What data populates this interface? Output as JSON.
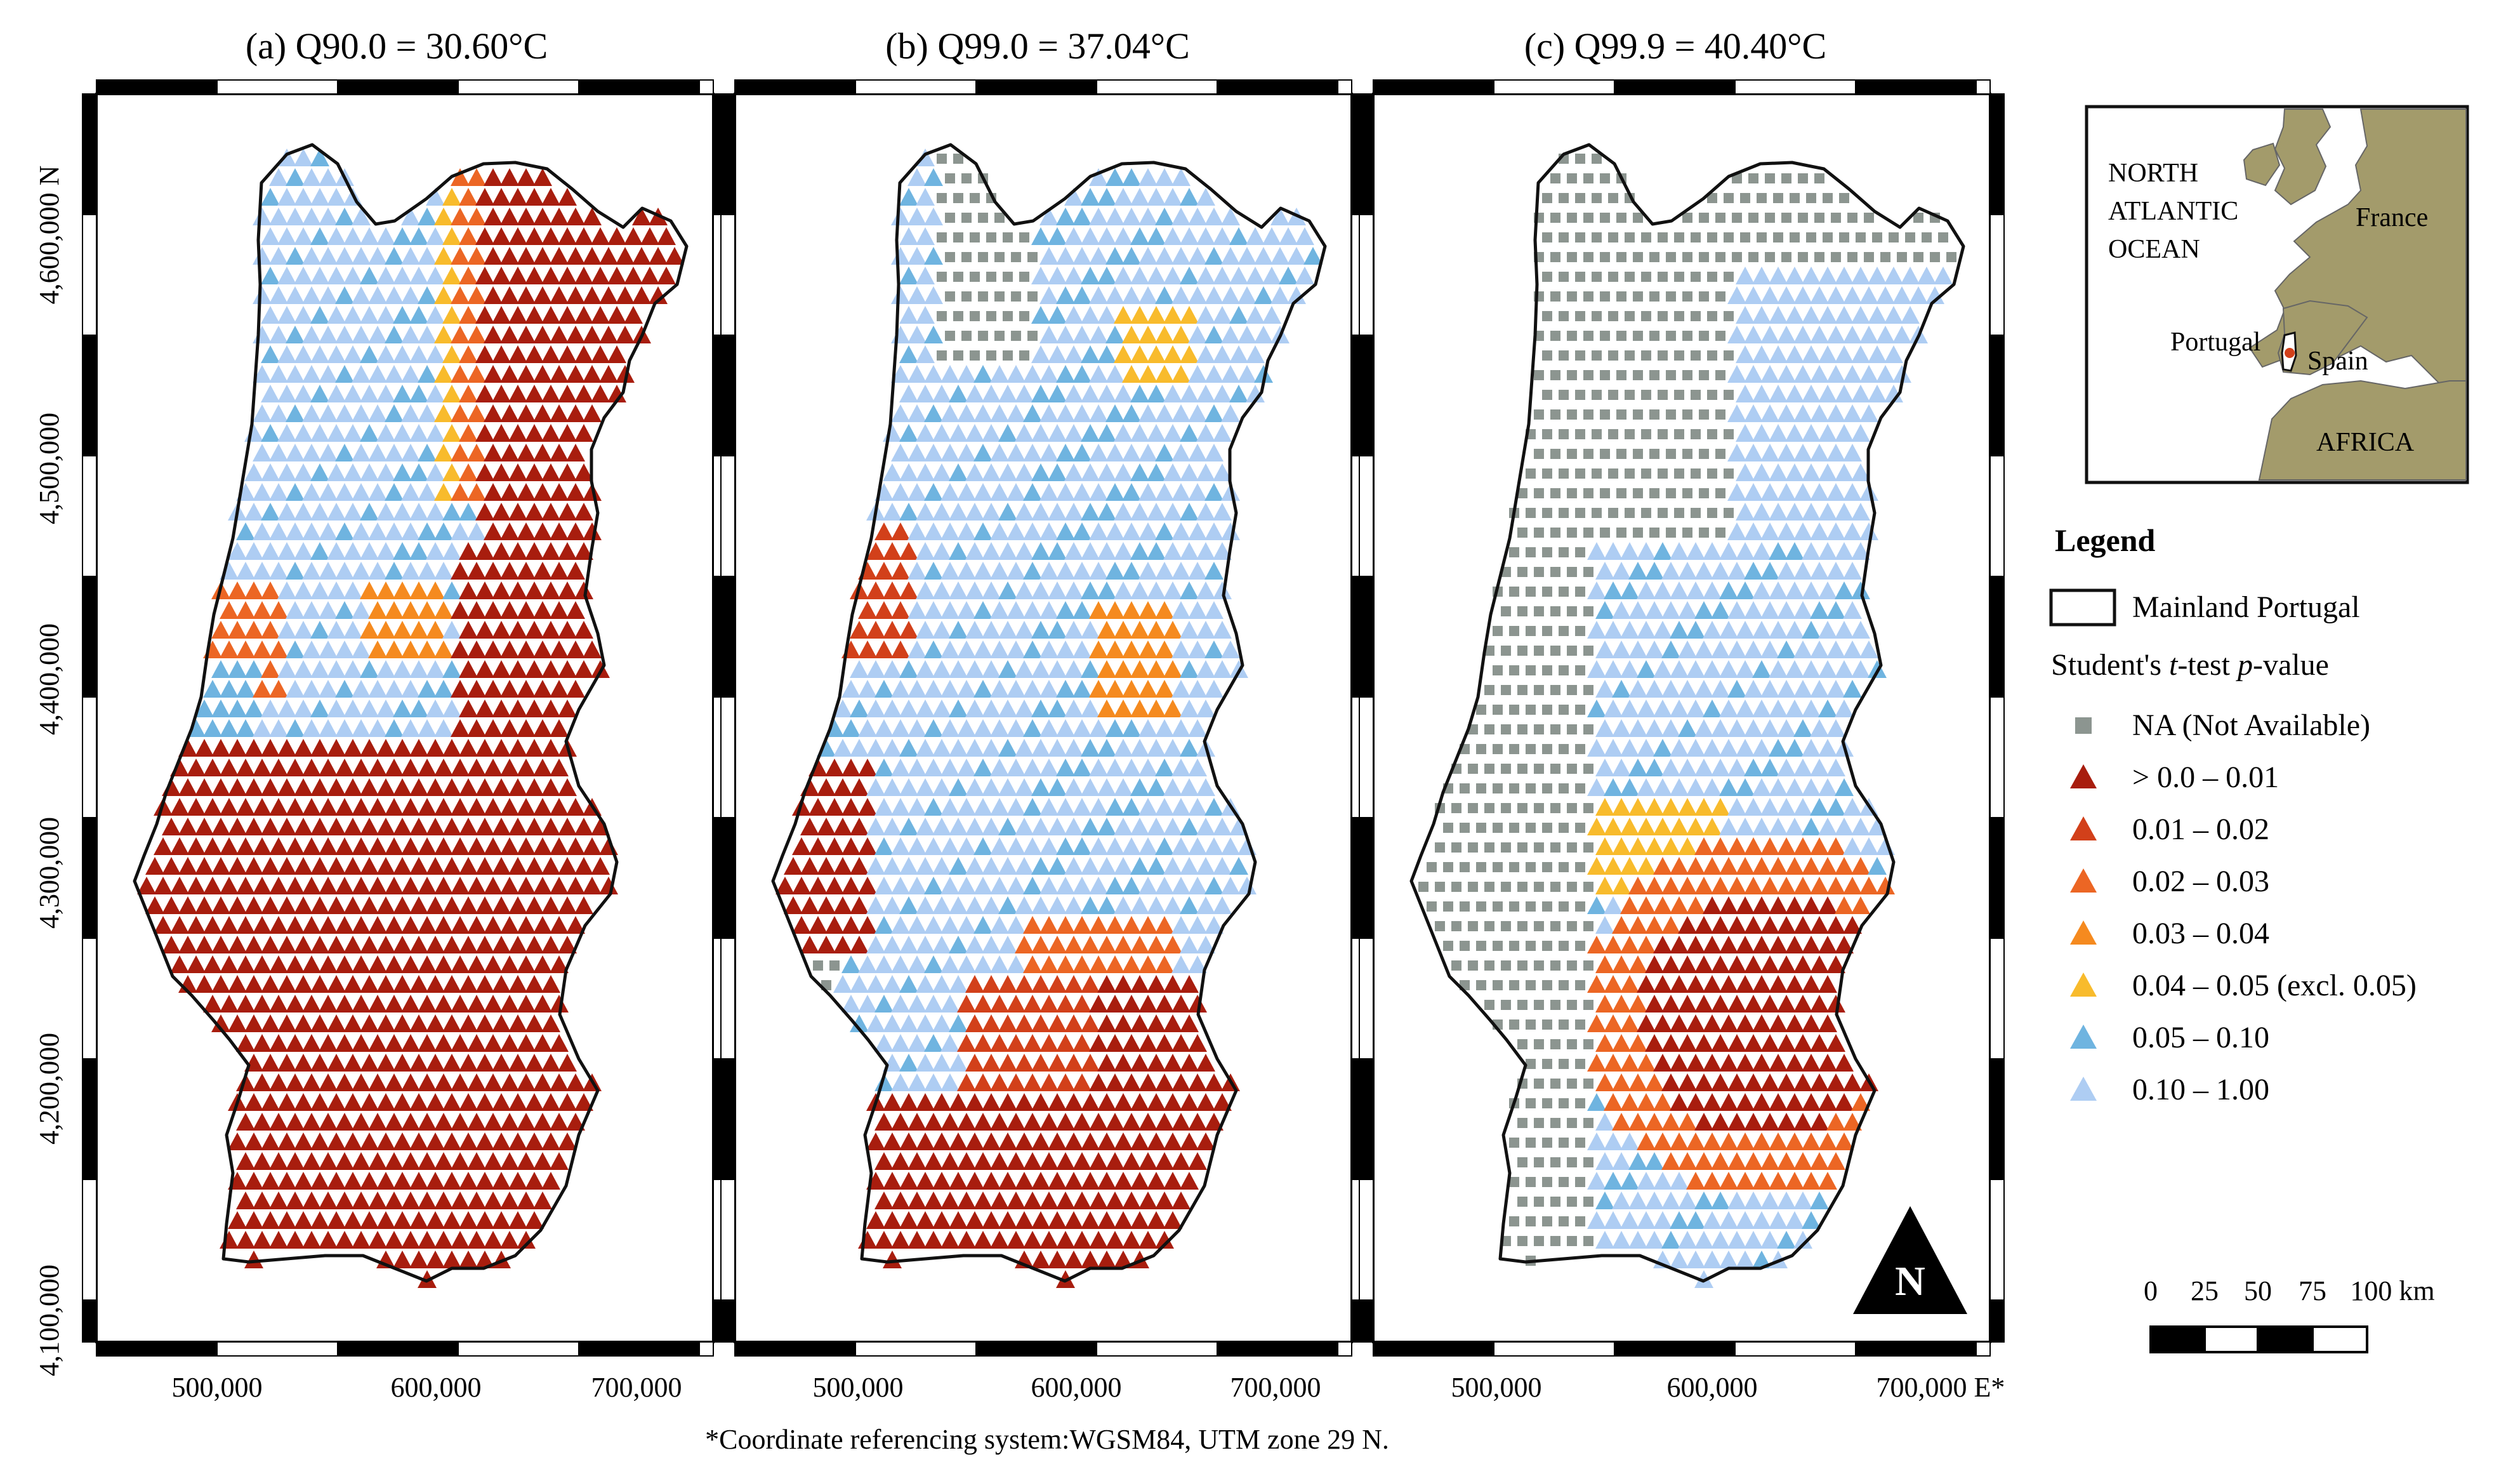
{
  "panels": [
    {
      "id": "a",
      "title": "(a) Q90.0 = 30.60°C",
      "scenario": "a"
    },
    {
      "id": "b",
      "title": "(b) Q99.0 = 37.04°C",
      "scenario": "b"
    },
    {
      "id": "c",
      "title": "(c) Q99.9 = 40.40°C",
      "scenario": "c"
    }
  ],
  "y_ticks": [
    "4,100,000",
    "4,200,000",
    "4,300,000",
    "4,400,000",
    "4,500,000",
    "4,600,000 N"
  ],
  "x_ticks": [
    "500,000",
    "600,000",
    "700,000"
  ],
  "x_tick_last_suffix": "700,000 E*",
  "footnote": "*Coordinate referencing system:WGSM84, UTM zone 29 N.",
  "inset": {
    "labels": [
      "NORTH",
      "ATLANTIC",
      "OCEAN",
      "France",
      "Portugal",
      "Spain",
      "AFRICA"
    ],
    "land_color": "#a39b6b",
    "water_color": "#ffffff"
  },
  "legend": {
    "title": "Legend",
    "boundary_label": "Mainland Portugal",
    "pvalue_title_parts": [
      "Student's ",
      "t",
      "-test ",
      "p",
      "-value"
    ],
    "classes": [
      {
        "label": "NA (Not Available)",
        "color": "#8c9590",
        "shape": "square"
      },
      {
        "label": "> 0.0 – 0.01",
        "color": "#a81d0e",
        "shape": "triangle"
      },
      {
        "label": "0.01 – 0.02",
        "color": "#d2401a",
        "shape": "triangle"
      },
      {
        "label": "0.02 – 0.03",
        "color": "#ec6624",
        "shape": "triangle"
      },
      {
        "label": "0.03 – 0.04",
        "color": "#f58a1f",
        "shape": "triangle"
      },
      {
        "label": "0.04 – 0.05 (excl. 0.05)",
        "color": "#f8bb2c",
        "shape": "triangle"
      },
      {
        "label": "0.05 – 0.10",
        "color": "#6fb4e0",
        "shape": "triangle"
      },
      {
        "label": "0.10 – 1.00",
        "color": "#aecdf3",
        "shape": "triangle"
      }
    ]
  },
  "north_arrow_label": "N",
  "scale_bar": {
    "labels": [
      "0",
      "25",
      "50",
      "75",
      "100 km"
    ]
  }
}
